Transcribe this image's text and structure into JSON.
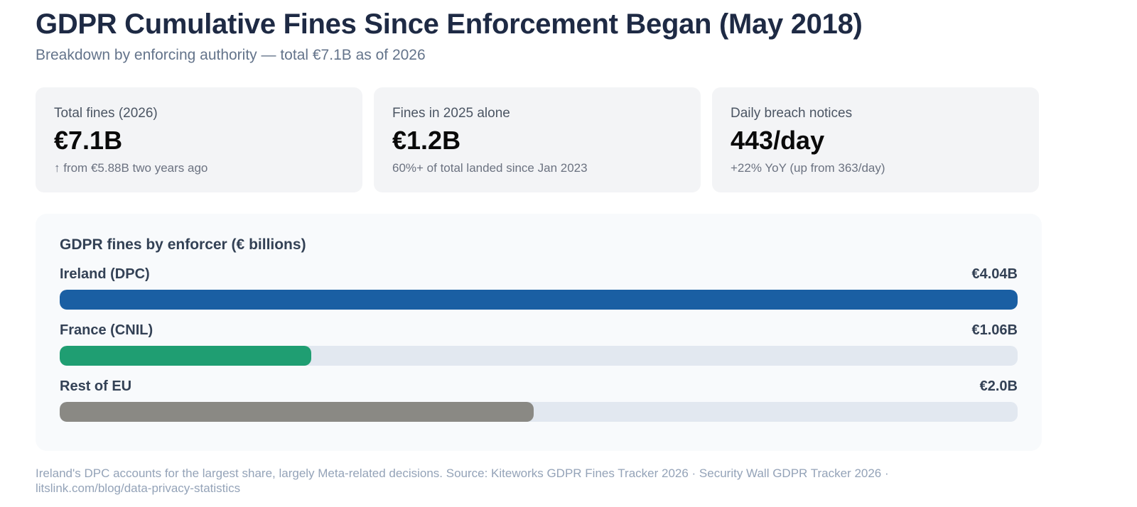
{
  "header": {
    "title": "GDPR Cumulative Fines Since Enforcement Began (May 2018)",
    "subtitle": "Breakdown by enforcing authority — total €7.1B as of 2026"
  },
  "cards": [
    {
      "label": "Total fines (2026)",
      "value": "€7.1B",
      "note": "↑ from €5.88B two years ago"
    },
    {
      "label": "Fines in 2025 alone",
      "value": "€1.2B",
      "note": "60%+ of total landed since Jan 2023"
    },
    {
      "label": "Daily breach notices",
      "value": "443/day",
      "note": "+22% YoY (up from 363/day)"
    }
  ],
  "chart_data": {
    "type": "bar",
    "orientation": "horizontal",
    "title": "GDPR fines by enforcer (€ billions)",
    "categories": [
      "Ireland (DPC)",
      "France (CNIL)",
      "Rest of EU"
    ],
    "values": [
      4.04,
      1.06,
      2.0
    ],
    "value_labels": [
      "€4.04B",
      "€1.06B",
      "€2.0B"
    ],
    "colors": [
      "#1a5fa3",
      "#1f9e72",
      "#8a8984"
    ],
    "xlim": [
      0,
      4.04
    ],
    "track_color": "#e2e8f0"
  },
  "footer": {
    "note": "Ireland's DPC accounts for the largest share, largely Meta-related decisions. Source: Kiteworks GDPR Fines Tracker 2026 · Security Wall GDPR Tracker 2026 · litslink.com/blog/data-privacy-statistics"
  }
}
